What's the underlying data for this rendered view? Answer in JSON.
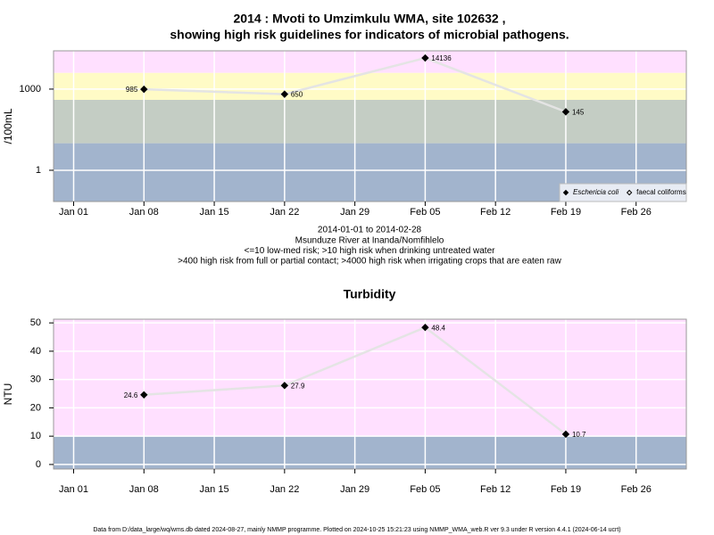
{
  "chart_data": [
    {
      "type": "line",
      "title": [
        "2014 : Mvoti to Umzimkulu WMA, site 102632 ,",
        "showing high risk guidelines for indicators of microbial pathogens."
      ],
      "ylabel": "/100mL",
      "x": [
        "Jan 08",
        "Jan 22",
        "Feb 05",
        "Feb 19"
      ],
      "xlim": [
        "Dec 30",
        "Mar 02"
      ],
      "xticks": [
        "Jan 01",
        "Jan 08",
        "Jan 15",
        "Jan 22",
        "Jan 29",
        "Feb 05",
        "Feb 12",
        "Feb 19",
        "Feb 26"
      ],
      "ylog": true,
      "ylim": [
        0.07,
        26000
      ],
      "yticks": [
        1,
        1000
      ],
      "grid": true,
      "line_color": "#e4e4e4",
      "bands": [
        {
          "from": null,
          "to": 10,
          "color": "#a2b4cd"
        },
        {
          "from": 10,
          "to": 400,
          "color": "#c4cdc4"
        },
        {
          "from": 400,
          "to": 4000,
          "color": "#fffbc6"
        },
        {
          "from": 4000,
          "to": null,
          "color": "#ffe0ff"
        }
      ],
      "series": [
        {
          "name": "Eschericia coli",
          "color": "#000000",
          "marker": "filled",
          "font_style": "italic",
          "values": [
            985,
            650,
            14136,
            145
          ]
        },
        {
          "name": "faecal coliforms",
          "color": "#000000",
          "marker": "open",
          "font_style": "normal",
          "values": [
            null,
            null,
            null,
            null
          ]
        }
      ],
      "legend": "bottom right",
      "notes": [
        "2014-01-01 to 2014-02-28",
        "Msunduze River at Inanda/Nomfihlelo",
        "<=10 low-med risk; >10 high risk when drinking untreated water",
        ">400 high risk from full or partial contact; >4000 high risk when irrigating crops that are eaten raw"
      ]
    },
    {
      "type": "line",
      "title": [
        "Turbidity"
      ],
      "ylabel": "NTU",
      "x": [
        "Jan 08",
        "Jan 22",
        "Feb 05",
        "Feb 19"
      ],
      "xlim": [
        "Dec 30",
        "Mar 02"
      ],
      "xticks": [
        "Jan 01",
        "Jan 08",
        "Jan 15",
        "Jan 22",
        "Jan 29",
        "Feb 05",
        "Feb 12",
        "Feb 19",
        "Feb 26"
      ],
      "ylog": false,
      "ylim": [
        -1.6,
        51.3
      ],
      "yticks": [
        0,
        10,
        20,
        30,
        40,
        50
      ],
      "grid": true,
      "line_color": "#e4e4e4",
      "bands": [
        {
          "from": null,
          "to": 10,
          "color": "#a2b4cd"
        },
        {
          "from": 10,
          "to": null,
          "color": "#ffe0ff"
        }
      ],
      "series": [
        {
          "name": "Turbidity",
          "color": "#000000",
          "marker": "filled",
          "values": [
            24.6,
            27.9,
            48.4,
            10.7
          ]
        }
      ],
      "notes": []
    }
  ],
  "footer": "Data from D:/data_large/wq/wms.db dated 2024-08-27, mainly NMMP programme. Plotted on 2024-10-25 15:21:23 using NMMP_WMA_web.R ver 9.3 under R version 4.4.1 (2024-06-14 ucrt)"
}
